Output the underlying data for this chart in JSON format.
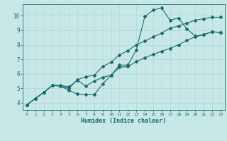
{
  "xlabel": "Humidex (Indice chaleur)",
  "bg_color": "#c8e8e8",
  "grid_color": "#b0d8d8",
  "line_color": "#1a6b6b",
  "xlim": [
    -0.5,
    23.5
  ],
  "ylim": [
    3.5,
    10.8
  ],
  "xticks": [
    0,
    1,
    2,
    3,
    4,
    5,
    6,
    7,
    8,
    9,
    10,
    11,
    12,
    13,
    14,
    15,
    16,
    17,
    18,
    19,
    20,
    21,
    22,
    23
  ],
  "yticks": [
    4,
    5,
    6,
    7,
    8,
    9,
    10
  ],
  "line1_x": [
    0,
    1,
    2,
    3,
    4,
    5,
    6,
    7,
    8,
    9,
    10,
    11,
    12,
    13,
    14,
    15,
    16,
    17,
    18,
    19,
    20,
    21,
    22,
    23
  ],
  "line1_y": [
    3.85,
    4.3,
    4.7,
    5.2,
    5.15,
    5.0,
    5.6,
    5.8,
    5.9,
    6.5,
    6.8,
    7.3,
    7.6,
    8.0,
    8.25,
    8.55,
    8.8,
    9.15,
    9.3,
    9.5,
    9.7,
    9.8,
    9.9,
    9.9
  ],
  "line2_x": [
    0,
    1,
    2,
    3,
    4,
    5,
    6,
    7,
    8,
    9,
    10,
    11,
    12,
    13,
    14,
    15,
    16,
    17,
    18,
    19,
    20,
    21,
    22,
    23
  ],
  "line2_y": [
    3.85,
    4.3,
    4.7,
    5.2,
    5.15,
    4.85,
    4.6,
    4.55,
    4.55,
    5.3,
    5.9,
    6.6,
    6.6,
    7.65,
    9.95,
    10.4,
    10.55,
    9.7,
    9.85,
    9.1,
    8.6,
    8.7,
    8.9,
    8.85
  ],
  "line3_x": [
    0,
    1,
    2,
    3,
    4,
    5,
    6,
    7,
    8,
    9,
    10,
    11,
    12,
    13,
    14,
    15,
    16,
    17,
    18,
    19,
    20,
    21,
    22,
    23
  ],
  "line3_y": [
    3.85,
    4.3,
    4.7,
    5.2,
    5.2,
    5.1,
    5.55,
    5.15,
    5.5,
    5.75,
    5.9,
    6.45,
    6.5,
    6.85,
    7.1,
    7.35,
    7.55,
    7.75,
    8.0,
    8.3,
    8.55,
    8.7,
    8.9,
    8.85
  ]
}
